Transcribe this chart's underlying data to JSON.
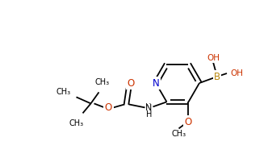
{
  "background": "#ffffff",
  "bond_color": "#000000",
  "N_color": "#0000cd",
  "O_color": "#cc3300",
  "B_color": "#b8860b",
  "lw": 1.3,
  "double_sep": 2.8,
  "figsize": [
    3.32,
    1.91
  ],
  "dpi": 100,
  "xlim": [
    0,
    332
  ],
  "ylim": [
    0,
    191
  ],
  "font_size": 7.5
}
